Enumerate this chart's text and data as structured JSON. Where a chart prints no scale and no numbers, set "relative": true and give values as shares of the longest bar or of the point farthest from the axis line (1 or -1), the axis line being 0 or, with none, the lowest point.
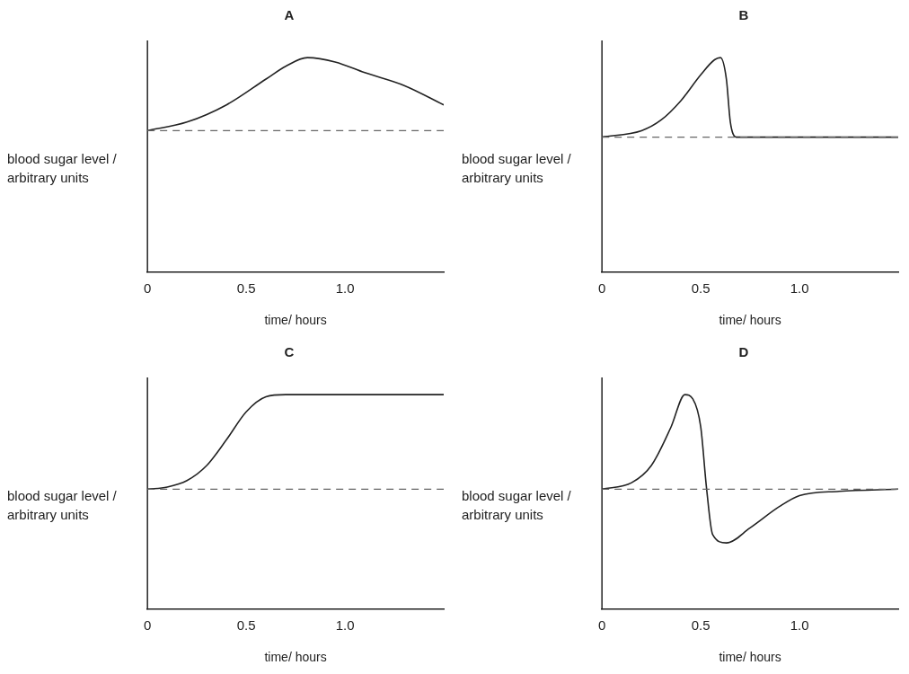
{
  "chart_data": [
    {
      "type": "line",
      "title": "A",
      "xlabel": "time/ hours",
      "ylabel": "blood sugar level / arbitrary units",
      "relative": true,
      "marker": "none",
      "line_style": "solid",
      "xlim": [
        0,
        1.5
      ],
      "xticks": [
        {
          "value": 0,
          "label": "0"
        },
        {
          "value": 0.5,
          "label": "0.5"
        },
        {
          "value": 1,
          "label": "1.0"
        }
      ],
      "x": [
        0,
        0.2,
        0.4,
        0.6,
        0.7,
        0.81,
        0.95,
        1.1,
        1.3,
        1.5
      ],
      "series": [
        {
          "color": "#222222",
          "values": [
            0.66,
            0.7,
            0.78,
            0.9,
            0.96,
            1,
            0.98,
            0.93,
            0.87,
            0.78
          ]
        }
      ],
      "ref_lines": [
        {
          "axis": "y",
          "value": 0.66,
          "line_style": "dashed",
          "color": "#666666"
        }
      ]
    },
    {
      "type": "line",
      "title": "B",
      "xlabel": "time/ hours",
      "ylabel": "blood sugar level / arbitrary units",
      "relative": true,
      "marker": "none",
      "line_style": "solid",
      "xlim": [
        0,
        1.5
      ],
      "xticks": [
        {
          "value": 0,
          "label": "0"
        },
        {
          "value": 0.5,
          "label": "0.5"
        },
        {
          "value": 1,
          "label": "1.0"
        }
      ],
      "x": [
        0,
        0.2,
        0.3,
        0.4,
        0.5,
        0.57,
        0.6,
        0.63,
        0.65,
        0.68,
        0.8,
        1.5
      ],
      "series": [
        {
          "color": "#222222",
          "values": [
            0.63,
            0.66,
            0.71,
            0.8,
            0.92,
            0.99,
            1,
            0.9,
            0.7,
            0.63,
            0.63,
            0.63
          ]
        }
      ],
      "ref_lines": [
        {
          "axis": "y",
          "value": 0.63,
          "line_style": "dashed",
          "color": "#666666"
        }
      ]
    },
    {
      "type": "line",
      "title": "C",
      "xlabel": "time/ hours",
      "ylabel": "blood sugar level / arbitrary units",
      "relative": true,
      "marker": "none",
      "line_style": "solid",
      "xlim": [
        0,
        1.5
      ],
      "xticks": [
        {
          "value": 0,
          "label": "0"
        },
        {
          "value": 0.5,
          "label": "0.5"
        },
        {
          "value": 1,
          "label": "1.0"
        }
      ],
      "x": [
        0,
        0.1,
        0.2,
        0.3,
        0.4,
        0.5,
        0.6,
        0.7,
        1.0,
        1.5
      ],
      "series": [
        {
          "color": "#222222",
          "values": [
            0.56,
            0.57,
            0.6,
            0.67,
            0.79,
            0.92,
            0.99,
            1,
            1,
            1
          ]
        }
      ],
      "ref_lines": [
        {
          "axis": "y",
          "value": 0.56,
          "line_style": "dashed",
          "color": "#666666"
        }
      ]
    },
    {
      "type": "line",
      "title": "D",
      "xlabel": "time/ hours",
      "ylabel": "blood sugar level / arbitrary units",
      "relative": true,
      "marker": "none",
      "line_style": "solid",
      "xlim": [
        0,
        1.5
      ],
      "xticks": [
        {
          "value": 0,
          "label": "0"
        },
        {
          "value": 0.5,
          "label": "0.5"
        },
        {
          "value": 1,
          "label": "1.0"
        }
      ],
      "x": [
        0,
        0.15,
        0.25,
        0.35,
        0.42,
        0.46,
        0.5,
        0.53,
        0.56,
        0.63,
        0.75,
        0.9,
        1.0,
        1.2,
        1.5
      ],
      "series": [
        {
          "color": "#222222",
          "values": [
            0.56,
            0.59,
            0.67,
            0.85,
            1,
            0.98,
            0.85,
            0.56,
            0.35,
            0.31,
            0.38,
            0.48,
            0.53,
            0.55,
            0.56
          ]
        }
      ],
      "ref_lines": [
        {
          "axis": "y",
          "value": 0.56,
          "line_style": "dashed",
          "color": "#666666"
        }
      ]
    }
  ]
}
